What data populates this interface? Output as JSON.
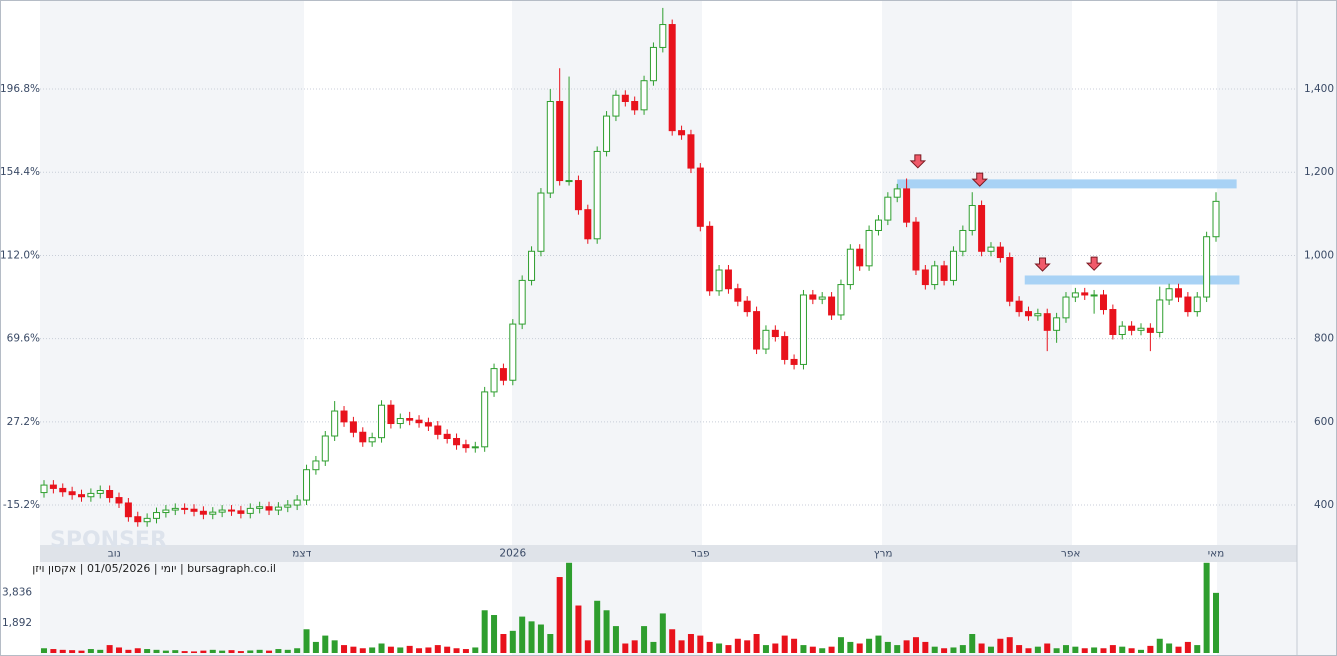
{
  "chart_data": {
    "type": "candlestick",
    "caption": "יומי | 01/05/2026 | אקסון ויזן | bursagraph.co.il",
    "watermark": "SPONSER",
    "open": [
      430,
      448,
      440,
      432,
      425,
      420,
      428,
      435,
      418,
      405,
      372,
      360,
      368,
      382,
      388,
      392,
      390,
      385,
      378,
      383,
      388,
      386,
      380,
      392,
      396,
      388,
      395,
      400,
      412,
      485,
      506,
      566,
      626,
      600,
      575,
      552,
      562,
      640,
      596,
      608,
      604,
      598,
      590,
      570,
      560,
      545,
      538,
      540,
      672,
      728,
      700,
      835,
      940,
      1010,
      1150,
      1370,
      1180,
      1180,
      1110,
      1040,
      1250,
      1335,
      1385,
      1370,
      1350,
      1420,
      1500,
      1555,
      1300,
      1290,
      1210,
      1070,
      915,
      965,
      920,
      890,
      865,
      775,
      820,
      805,
      750,
      738,
      905,
      895,
      900,
      857,
      930,
      1015,
      975,
      1060,
      1085,
      1140,
      1160,
      1080,
      965,
      930,
      975,
      940,
      1010,
      1060,
      1120,
      1010,
      1020,
      995,
      890,
      865,
      855,
      860,
      820,
      850,
      900,
      910,
      905,
      905,
      870,
      810,
      830,
      820,
      825,
      815,
      893,
      920,
      900,
      865,
      900,
      1045
    ],
    "high": [
      460,
      460,
      452,
      444,
      437,
      440,
      447,
      447,
      430,
      417,
      384,
      380,
      394,
      400,
      404,
      404,
      402,
      397,
      395,
      400,
      400,
      398,
      404,
      408,
      408,
      407,
      412,
      424,
      497,
      518,
      578,
      650,
      638,
      612,
      587,
      574,
      652,
      652,
      620,
      624,
      616,
      610,
      602,
      582,
      572,
      557,
      552,
      684,
      740,
      740,
      847,
      952,
      1022,
      1162,
      1400,
      1450,
      1430,
      1192,
      1122,
      1262,
      1347,
      1397,
      1397,
      1382,
      1432,
      1512,
      1595,
      1567,
      1312,
      1302,
      1222,
      1082,
      977,
      977,
      932,
      902,
      877,
      832,
      832,
      817,
      762,
      917,
      917,
      912,
      912,
      942,
      1027,
      1027,
      1072,
      1097,
      1152,
      1172,
      1185,
      1092,
      977,
      987,
      987,
      1022,
      1072,
      1152,
      1132,
      1032,
      1032,
      1007,
      902,
      877,
      872,
      872,
      862,
      912,
      922,
      922,
      917,
      917,
      882,
      842,
      842,
      837,
      837,
      925,
      932,
      932,
      912,
      912,
      1057,
      1152
    ],
    "low": [
      418,
      428,
      420,
      413,
      408,
      408,
      416,
      406,
      393,
      360,
      348,
      348,
      356,
      370,
      376,
      378,
      373,
      366,
      366,
      371,
      374,
      368,
      368,
      380,
      376,
      376,
      383,
      388,
      400,
      473,
      494,
      554,
      588,
      563,
      540,
      540,
      550,
      584,
      584,
      592,
      586,
      578,
      558,
      548,
      533,
      526,
      526,
      528,
      660,
      688,
      688,
      823,
      928,
      998,
      1138,
      1168,
      1168,
      1098,
      1028,
      1028,
      1238,
      1323,
      1358,
      1338,
      1338,
      1408,
      1488,
      1288,
      1278,
      1198,
      1058,
      903,
      903,
      908,
      878,
      853,
      763,
      763,
      793,
      738,
      726,
      726,
      883,
      883,
      845,
      845,
      918,
      963,
      963,
      1048,
      1073,
      1128,
      1068,
      953,
      918,
      918,
      928,
      928,
      998,
      1048,
      998,
      998,
      983,
      878,
      853,
      843,
      843,
      770,
      790,
      838,
      888,
      893,
      860,
      858,
      798,
      798,
      808,
      808,
      770,
      803,
      881,
      888,
      853,
      853,
      888,
      1033
    ],
    "close": [
      448,
      440,
      432,
      425,
      420,
      428,
      435,
      418,
      405,
      372,
      360,
      368,
      382,
      388,
      392,
      390,
      385,
      378,
      383,
      388,
      386,
      380,
      392,
      396,
      388,
      395,
      400,
      412,
      485,
      506,
      566,
      626,
      600,
      575,
      552,
      562,
      640,
      596,
      608,
      604,
      598,
      590,
      570,
      560,
      545,
      538,
      540,
      672,
      728,
      700,
      835,
      940,
      1010,
      1150,
      1370,
      1180,
      1180,
      1110,
      1040,
      1250,
      1335,
      1385,
      1370,
      1350,
      1420,
      1500,
      1555,
      1300,
      1290,
      1210,
      1070,
      915,
      965,
      920,
      890,
      865,
      775,
      820,
      805,
      750,
      738,
      905,
      895,
      900,
      857,
      930,
      1015,
      975,
      1060,
      1085,
      1140,
      1160,
      1080,
      965,
      930,
      975,
      940,
      1010,
      1060,
      1120,
      1010,
      1020,
      995,
      890,
      865,
      855,
      860,
      820,
      850,
      900,
      910,
      905,
      905,
      870,
      810,
      830,
      820,
      825,
      815,
      893,
      920,
      900,
      865,
      900,
      1045,
      1130
    ],
    "volume": [
      300,
      250,
      200,
      180,
      150,
      250,
      200,
      500,
      350,
      200,
      300,
      250,
      200,
      150,
      180,
      120,
      100,
      150,
      200,
      150,
      180,
      120,
      160,
      200,
      150,
      250,
      200,
      300,
      1500,
      700,
      1100,
      800,
      500,
      400,
      300,
      350,
      600,
      400,
      350,
      450,
      300,
      350,
      500,
      400,
      300,
      250,
      350,
      2700,
      2400,
      1200,
      1400,
      2300,
      2000,
      1800,
      1200,
      4800,
      5700,
      3000,
      800,
      3300,
      2700,
      1700,
      600,
      800,
      1700,
      700,
      2500,
      1500,
      800,
      1200,
      1100,
      700,
      600,
      500,
      900,
      800,
      1200,
      500,
      600,
      1100,
      900,
      500,
      400,
      300,
      400,
      1000,
      700,
      600,
      900,
      1100,
      700,
      500,
      800,
      1000,
      700,
      400,
      300,
      350,
      500,
      1200,
      600,
      400,
      900,
      1000,
      500,
      300,
      400,
      600,
      300,
      500,
      400,
      300,
      350,
      300,
      500,
      400,
      300,
      200,
      450,
      900,
      600,
      400,
      700,
      500,
      5700,
      3800
    ],
    "up_color": "#2e9e2e",
    "down_color": "#e8121c",
    "level_color": "#a8d2f5",
    "marker_color": "#f05a6a",
    "ylim": [
      304,
      1614
    ],
    "yticks": [
      {
        "value": 400,
        "label": "400"
      },
      {
        "value": 600,
        "label": "600"
      },
      {
        "value": 800,
        "label": "800"
      },
      {
        "value": 1000,
        "label": "1,000"
      },
      {
        "value": 1200,
        "label": "1,200"
      },
      {
        "value": 1400,
        "label": "1,400"
      }
    ],
    "y2lim": [
      -35.6,
      242.1
    ],
    "y2ticks": [
      {
        "value": -15.2,
        "label": "-15.2%"
      },
      {
        "value": 27.2,
        "label": "27.2%"
      },
      {
        "value": 69.6,
        "label": "69.6%"
      },
      {
        "value": 112,
        "label": "112.0%"
      },
      {
        "value": 154.4,
        "label": "154.4%"
      },
      {
        "value": 196.8,
        "label": "196.8%"
      }
    ],
    "vlim": [
      0,
      5750
    ],
    "vticks": [
      {
        "value": 1892,
        "label": "1,892"
      },
      {
        "value": 3836,
        "label": "3,836"
      }
    ],
    "xticks": [
      {
        "value": 7.5,
        "label": "נוב"
      },
      {
        "value": 27.5,
        "label": "דצמ"
      },
      {
        "value": 50,
        "label": "2026"
      },
      {
        "value": 70,
        "label": "פבר"
      },
      {
        "value": 89.5,
        "label": "מרץ"
      },
      {
        "value": 109.5,
        "label": "אפר"
      },
      {
        "value": 125,
        "label": "מאי"
      }
    ],
    "levels": [
      {
        "value": 1172,
        "from": 91,
        "to": 127.2
      },
      {
        "value": 941,
        "from": 104.6,
        "to": 127.5
      }
    ],
    "markers": [
      {
        "index": 93.2,
        "value": 1225
      },
      {
        "index": 99.8,
        "value": 1181
      },
      {
        "index": 106.5,
        "value": 977
      },
      {
        "index": 112,
        "value": 979
      }
    ],
    "grid": true
  }
}
